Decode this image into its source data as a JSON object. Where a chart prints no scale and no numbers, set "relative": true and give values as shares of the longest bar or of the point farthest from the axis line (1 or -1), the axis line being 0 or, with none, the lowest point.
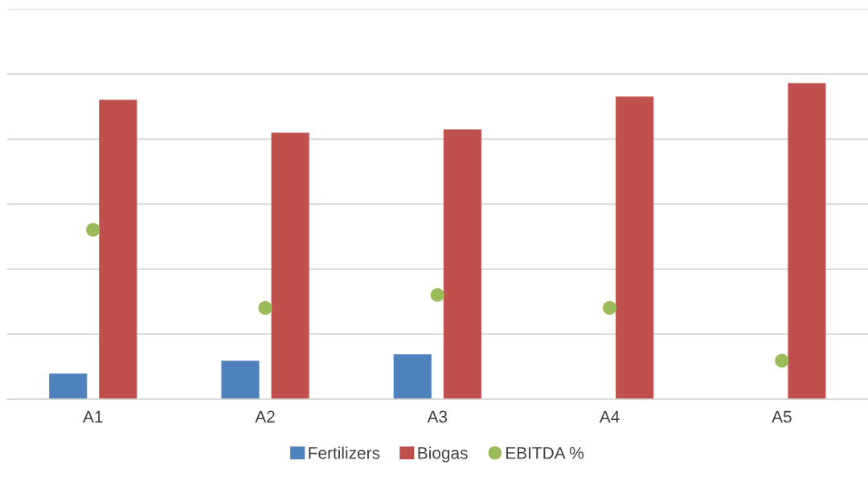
{
  "chart_data": {
    "type": "bar",
    "relative": true,
    "categories": [
      "A1",
      "A2",
      "A3",
      "A4",
      "A5"
    ],
    "grid": "y",
    "legend": "bottom",
    "series": [
      {
        "name": "Fertilizers",
        "color": "#4f81bd",
        "values": [
          0.081,
          0.122,
          0.142,
          null,
          null
        ]
      },
      {
        "name": "Biogas",
        "color": "#c0504d",
        "values": [
          0.947,
          0.843,
          0.853,
          0.957,
          1.0
        ]
      },
      {
        "name": "EBITDA %",
        "color": "#9bbb59",
        "type": "scatter",
        "marker": "circle",
        "values": [
          0.536,
          0.289,
          0.33,
          0.289,
          0.122
        ]
      }
    ]
  }
}
